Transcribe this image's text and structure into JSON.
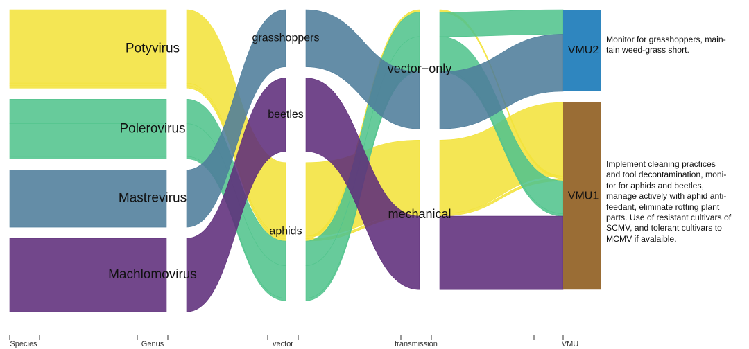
{
  "chart_data": {
    "type": "alluvial",
    "axes": [
      "Species",
      "Genus",
      "vector",
      "transmission",
      "VMU"
    ],
    "colors": {
      "Potyvirus": "#f2e33c",
      "Polerovirus": "#52c48d",
      "Mastrevirus": "#4e7d9b",
      "Machlomovirus": "#5e2e7b",
      "VMU2": "#2f86bf",
      "VMU1": "#9a6d35"
    },
    "strata": {
      "Genus": [
        "Potyvirus",
        "Polerovirus",
        "Mastrevirus",
        "Machlomovirus"
      ],
      "vector": [
        "grasshoppers",
        "beetles",
        "aphids"
      ],
      "transmission": [
        "vector−only",
        "mechanical"
      ],
      "VMU": [
        "VMU2",
        "VMU1"
      ]
    },
    "flows": [
      {
        "genus": "Potyvirus",
        "vector": "aphids",
        "transmission": "mechanical",
        "VMU": "VMU1",
        "weight": 9.0
      },
      {
        "genus": "Potyvirus",
        "vector": "aphids",
        "transmission": "vector−only",
        "VMU": "VMU1",
        "weight": 0.3
      },
      {
        "genus": "Potyvirus",
        "vector": "aphids",
        "transmission": "mechanical",
        "VMU": "VMU1",
        "weight": 0.3
      },
      {
        "genus": "Polerovirus",
        "vector": "aphids",
        "transmission": "vector−only",
        "VMU": "VMU2",
        "weight": 3.0
      },
      {
        "genus": "Polerovirus",
        "vector": "aphids",
        "transmission": "vector−only",
        "VMU": "VMU1",
        "weight": 4.0
      },
      {
        "genus": "Polerovirus",
        "vector": "aphids",
        "transmission": "vector−only",
        "VMU": "VMU1",
        "weight": 0.3
      },
      {
        "genus": "Mastrevirus",
        "vector": "grasshoppers",
        "transmission": "vector−only",
        "VMU": "VMU2",
        "weight": 7.0
      },
      {
        "genus": "Machlomovirus",
        "vector": "beetles",
        "transmission": "mechanical",
        "VMU": "VMU1",
        "weight": 9.0
      }
    ],
    "annotations": [
      {
        "target": "VMU2",
        "text": "Monitor for grasshoppers, main-tain weed-grass short."
      },
      {
        "target": "VMU1",
        "text": "Implement cleaning practices and tool decontamination, moni-tor for aphids and beetles, manage actively with aphid  anti-feedant, eliminate rotting plant parts. Use of resistant cultivars of SCMV, and tolerant cultivars to MCMV if avalaible."
      }
    ]
  },
  "notes": {
    "vmu2": [
      "Monitor for grasshoppers, main-",
      "tain weed-grass short."
    ],
    "vmu1": [
      "Implement cleaning practices",
      "and tool decontamination, moni-",
      "tor for aphids and beetles,",
      "manage actively with aphid  anti-",
      "feedant, eliminate rotting plant",
      "parts. Use of resistant cultivars of",
      "SCMV, and tolerant cultivars to",
      "MCMV if avalaible."
    ]
  }
}
